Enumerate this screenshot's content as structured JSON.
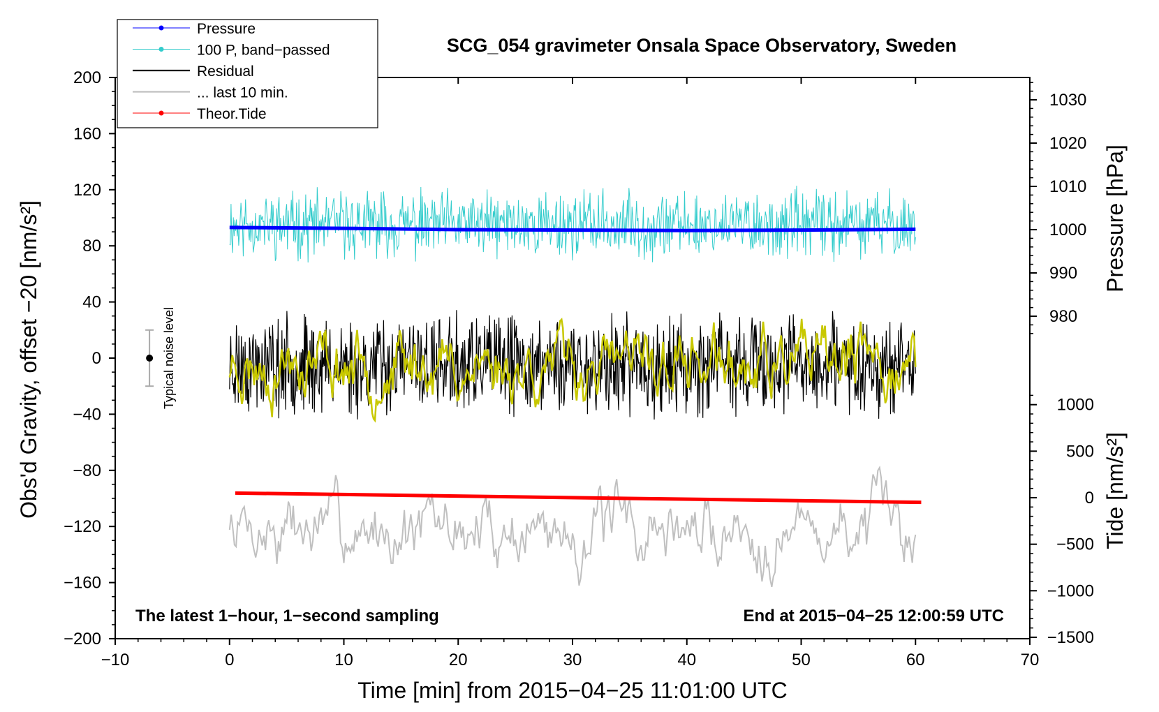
{
  "chart_data": {
    "type": "line",
    "title": "SCG_054 gravimeter Onsala Space Observatory, Sweden",
    "xlabel": "Time [min] from 2015−04−25 11:01:00 UTC",
    "ylabel": "Obs'd Gravity, offset −20 [nm/s²]",
    "ylabel_right_pressure": "Pressure [hPa]",
    "ylabel_right_tide": "Tide [nm/s²]",
    "xlim": [
      -10,
      70
    ],
    "ylim": [
      -200,
      200
    ],
    "pressure_axis": {
      "ticks": [
        980,
        990,
        1000,
        1010,
        1020,
        1030
      ]
    },
    "tide_axis": {
      "ticks": [
        -1500,
        -1000,
        -500,
        0,
        500,
        1000
      ]
    },
    "x_ticks": [
      -10,
      0,
      10,
      20,
      30,
      40,
      50,
      60,
      70
    ],
    "x_tick_labels": [
      "−10",
      "0",
      "10",
      "20",
      "30",
      "40",
      "50",
      "60",
      "70"
    ],
    "y_ticks": [
      -200,
      -160,
      -120,
      -80,
      -40,
      0,
      40,
      80,
      120,
      160,
      200
    ],
    "y_tick_labels": [
      "−200",
      "−160",
      "−120",
      "−80",
      "−40",
      "0",
      "40",
      "80",
      "120",
      "160",
      "200"
    ],
    "pressure_tick_labels": [
      "980",
      "990",
      "1000",
      "1010",
      "1020",
      "1030"
    ],
    "tide_tick_labels": [
      "−1500",
      "−1000",
      "−500",
      "0",
      "500",
      "1000"
    ],
    "series": [
      {
        "name": "Pressure",
        "color": "#0000ff",
        "kind": "line",
        "x_start": 0,
        "x_end": 60,
        "values_hpa": [
          1000.5,
          1000.3,
          1000.0,
          999.9,
          999.8,
          999.9,
          1000.1
        ]
      },
      {
        "name": "100 P, band−passed",
        "color": "#33cccc",
        "kind": "noise",
        "x_start": 0,
        "x_end": 60,
        "center": 95,
        "amplitude": 22
      },
      {
        "name": "Residual",
        "color": "#000000",
        "kind": "noise",
        "x_start": 0,
        "x_end": 60,
        "center": -5,
        "amplitude": 32
      },
      {
        "name": "... last 10 min.",
        "color": "#c0c0c0",
        "kind": "noise",
        "x_start": 0,
        "x_end": 60,
        "center": -122,
        "amplitude": 20
      },
      {
        "name": "Theor.Tide",
        "color": "#ff0000",
        "kind": "line",
        "x": [
          0.5,
          60.5
        ],
        "values_nm_s2": [
          50,
          -50
        ]
      },
      {
        "name": "smoothed residual",
        "color": "#c8c800",
        "kind": "noise",
        "x_start": 0,
        "x_end": 60,
        "center": -5,
        "amplitude": 18,
        "in_legend": false
      }
    ],
    "noise_bar": {
      "label": "Typical noise level",
      "x": -7,
      "y": 0,
      "half_range": 20
    },
    "annotations": {
      "left": "The latest 1−hour, 1−second sampling",
      "right": "End at 2015−04−25 12:00:59 UTC"
    },
    "legend_position": "top-left"
  }
}
